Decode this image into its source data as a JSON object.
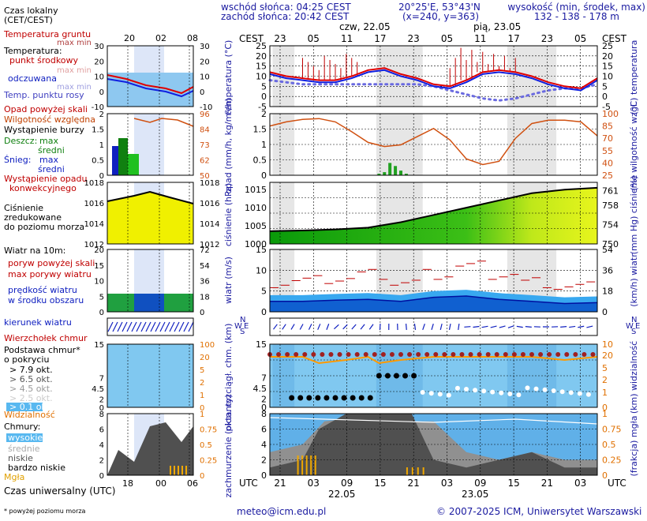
{
  "header": {
    "sunrise": "wschód słońca: 04:25 CEST",
    "sunset": "zachód słońca: 20:42 CEST",
    "coords": "20°25'E, 53°43'N",
    "grid": "(x=240,  y=363)",
    "altitude_label": "wysokość (min, środek, max)",
    "altitude_values": "132 - 138 - 178 m",
    "day1": "czw, 22.05",
    "day2": "pią, 23.05"
  },
  "legend": {
    "local_time": "Czas lokalny",
    "local_time_sub": "(CET/CEST)",
    "local_ticks": [
      "20",
      "02",
      "08"
    ],
    "soil_temp": "Temperatura gruntu",
    "max_min": "max min",
    "temperature": "Temperatura:",
    "mid_point": "punkt środkowy",
    "max_min_faint": "max min",
    "felt": "odczuwana",
    "max_min_faint2": "max min",
    "dew": "Temp. punktu rosy",
    "precip_above": "Opad powyżej skali",
    "humidity": "Wilgotność względna",
    "storm": "Wystąpienie burzy",
    "rain": "Deszcz:",
    "rain_max": "max",
    "rain_avg": "średni",
    "snow": "Śnieg:",
    "snow_max": "max",
    "snow_avg": "średni",
    "convective": "Wystąpienie opadu",
    "convective2": "konwekcyjnego",
    "pressure1": "Ciśnienie",
    "pressure2": "zredukowane",
    "pressure3": "do poziomu morza",
    "wind_title": "Wiatr na 10m:",
    "gust_above": "poryw powyżej skali",
    "max_gust": "max porywy wiatru",
    "wind_speed": "prędkość wiatru",
    "wind_area": "w środku obszaru",
    "wind_dir": "kierunek wiatru",
    "cloud_top": "Wierzchołek chmur",
    "cloud_base": "Podstawa chmur*",
    "cover": "o pokryciu",
    "okt": [
      "> 7.9 okt.",
      "> 6.5 okt.",
      "> 4.5 okt.",
      "> 2.5 okt.",
      "> 0.1 okt."
    ],
    "visibility": "Widzialność",
    "clouds": "Chmury:",
    "high": "wysokie",
    "medium": "średnie",
    "low": "niskie",
    "very_low": "bardzo niskie",
    "fog": "Mgła",
    "utc": "Czas uniwersalny (UTC)",
    "utc_ticks": [
      "18",
      "00",
      "06"
    ],
    "footnote": "* powyżej poziomu morza"
  },
  "axes": {
    "cest": "CEST",
    "utc": "UTC",
    "top_ticks": [
      "23",
      "05",
      "11",
      "17",
      "23",
      "05",
      "11",
      "17",
      "23",
      "05"
    ],
    "bottom_ticks": [
      "21",
      "03",
      "09",
      "15",
      "21",
      "03",
      "09",
      "15",
      "21",
      "03"
    ],
    "bottom_dates": [
      "22.05",
      "23.05"
    ],
    "temp_label": "temperatura (°C)",
    "temp_label_r": "(°C) temperatura",
    "precip_label": "opad (mm/h, kg/m²/h)",
    "hum_label": "(%) wilgotność wzgl.",
    "press_label": "ciśnienie (hPa)",
    "press_label_r": "(mm Hg) ciśnienie",
    "wind_label": "wiatr (m/s)",
    "wind_label_r": "(km/h) wiatr",
    "cloud_label": "pion. rozciągł. chm. (km)",
    "vis_label": "(km) widzialność",
    "cover_label": "zachmurzenie (oktanty)",
    "fog_label": "(frakcja) mgła",
    "compass": [
      "N",
      "W",
      "E",
      "S"
    ]
  },
  "footer": {
    "email": "meteo@icm.edu.pl",
    "copyright": "© 2007-2025 ICM, Uniwersytet Warszawski"
  },
  "chart_data": [
    {
      "type": "line",
      "panel": "temperatura",
      "ylabel": "temperatura (°C)",
      "ylim": [
        -5,
        25
      ],
      "y_ticks": [
        -5,
        0,
        5,
        10,
        15,
        20,
        25
      ],
      "x_hours_from_start": [
        0,
        3,
        6,
        9,
        12,
        15,
        18,
        21,
        24,
        27,
        30,
        33,
        36,
        39,
        42,
        45,
        48,
        51,
        54,
        57,
        60
      ],
      "series": [
        {
          "name": "punkt środkowy",
          "values": [
            12,
            10,
            9,
            8,
            8,
            10,
            13,
            14,
            11,
            9,
            6,
            5,
            8,
            12,
            13,
            12,
            10,
            7,
            5,
            4,
            9
          ]
        },
        {
          "name": "odczuwana",
          "values": [
            11,
            9,
            8,
            7,
            7,
            9,
            12,
            13,
            10,
            8,
            5,
            4,
            7,
            11,
            12,
            11,
            9,
            6,
            4,
            3,
            8
          ]
        },
        {
          "name": "Temp. punktu rosy",
          "values": [
            8,
            7,
            6,
            6,
            6,
            6,
            6,
            6,
            6,
            6,
            5,
            3,
            1,
            -1,
            -2,
            -1,
            1,
            3,
            4,
            4,
            6
          ]
        }
      ]
    },
    {
      "type": "line",
      "panel": "wilgotność",
      "ylabel": "(%) wilgotność wzgl.",
      "ylim": [
        25,
        100
      ],
      "x_hours_from_start": [
        0,
        3,
        6,
        9,
        12,
        15,
        18,
        21,
        24,
        27,
        30,
        33,
        36,
        39,
        42,
        45,
        48,
        51,
        54,
        57,
        60
      ],
      "series": [
        {
          "name": "Wilgotność względna",
          "values": [
            85,
            90,
            93,
            94,
            90,
            78,
            65,
            60,
            62,
            72,
            82,
            68,
            45,
            38,
            42,
            70,
            88,
            92,
            92,
            90,
            73
          ]
        }
      ]
    },
    {
      "type": "bar",
      "panel": "opad",
      "ylabel": "opad (mm/h, kg/m²/h)",
      "ylim": [
        0,
        2
      ],
      "x_hours_from_start": [
        20,
        21,
        22,
        23,
        24,
        25
      ],
      "values": [
        0.05,
        0.1,
        0.4,
        0.3,
        0.15,
        0.05
      ]
    },
    {
      "type": "area",
      "panel": "ciśnienie",
      "ylabel": "ciśnienie (hPa)",
      "ylim": [
        1000,
        1017
      ],
      "x_hours_from_start": [
        0,
        6,
        12,
        18,
        24,
        30,
        36,
        42,
        48,
        54,
        60
      ],
      "values": [
        1003.5,
        1003.7,
        1004,
        1004.5,
        1006,
        1008,
        1010,
        1012,
        1014,
        1015,
        1015.5
      ]
    },
    {
      "type": "line",
      "panel": "wiatr",
      "ylabel": "wiatr (m/s)",
      "ylim": [
        0,
        15
      ],
      "x_hours_from_start": [
        0,
        6,
        12,
        18,
        24,
        30,
        36,
        42,
        48,
        54,
        60
      ],
      "series": [
        {
          "name": "prędkość wiatru",
          "values": [
            2.5,
            2.5,
            2.8,
            3,
            2.5,
            3.5,
            3.8,
            3,
            2.5,
            2,
            2.2
          ]
        },
        {
          "name": "max porywy wiatru",
          "values": [
            7,
            7.5,
            8,
            9,
            7,
            9,
            11,
            9,
            7,
            6,
            6
          ]
        }
      ]
    }
  ]
}
